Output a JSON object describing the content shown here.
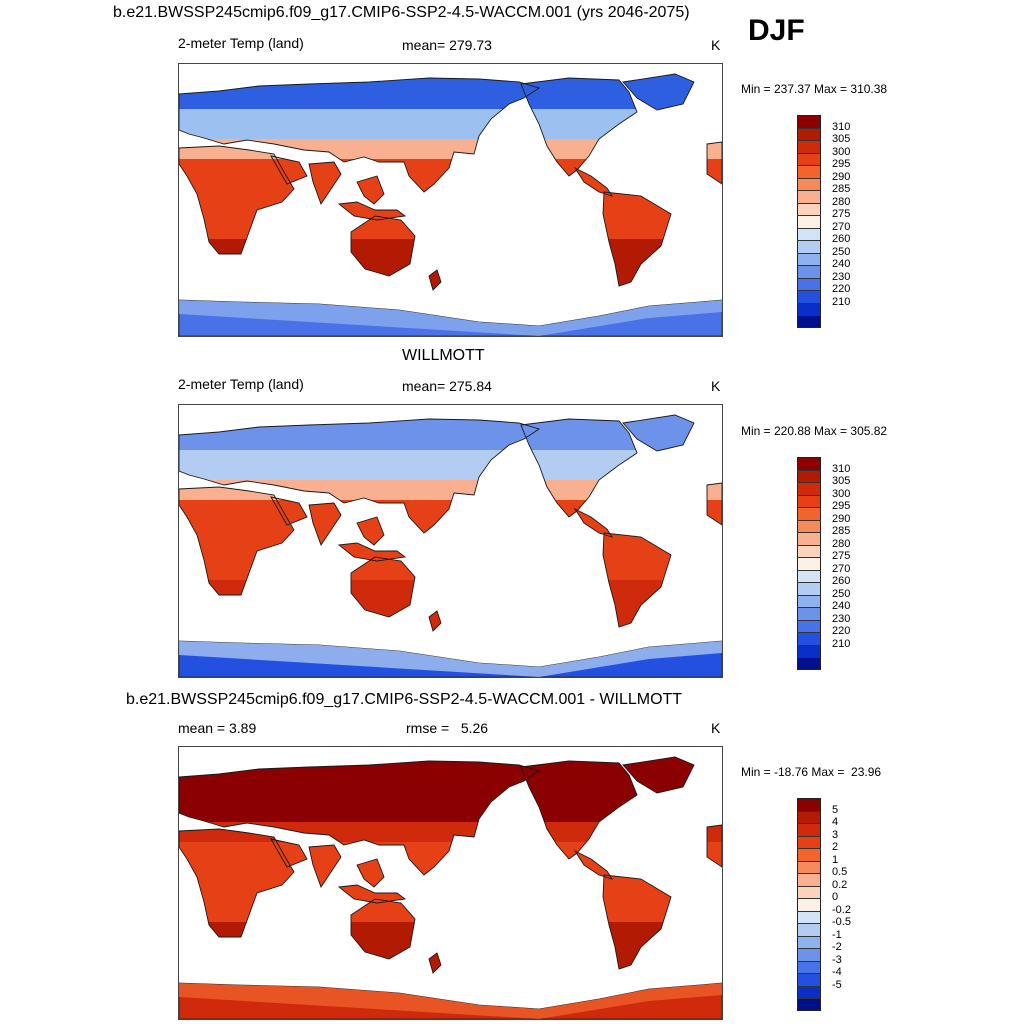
{
  "header": {
    "season": "DJF"
  },
  "panels": [
    {
      "id": "model",
      "title": "b.e21.BWSSP245cmip6.f09_g17.CMIP6-SSP2-4.5-WACCM.001 (yrs 2046-2075)",
      "variable": "2-meter Temp (land)",
      "stat_label": "mean= 279.73",
      "units": "K",
      "minmax": "Min = 237.37 Max = 310.38",
      "colorbar": {
        "labels": [
          "310",
          "305",
          "300",
          "295",
          "290",
          "285",
          "280",
          "275",
          "270",
          "260",
          "250",
          "240",
          "230",
          "220",
          "210"
        ],
        "colors": [
          "#8b0000",
          "#b31a04",
          "#cf2a0c",
          "#e64017",
          "#f2632e",
          "#f68a5a",
          "#f8b090",
          "#fbd3bc",
          "#fdf0e4",
          "#d4e4f7",
          "#b2ccf2",
          "#8fb1ee",
          "#6c92ea",
          "#4a72e8",
          "#2350e0",
          "#0a2fc8",
          "#000f8c"
        ]
      }
    },
    {
      "id": "obs",
      "title": "WILLMOTT",
      "variable": "2-meter Temp (land)",
      "stat_label": "mean= 275.84",
      "units": "K",
      "minmax": "Min = 220.88 Max = 305.82",
      "colorbar": {
        "labels": [
          "310",
          "305",
          "300",
          "295",
          "290",
          "285",
          "280",
          "275",
          "270",
          "260",
          "250",
          "240",
          "230",
          "220",
          "210"
        ],
        "colors": [
          "#8b0000",
          "#b31a04",
          "#cf2a0c",
          "#e64017",
          "#f2632e",
          "#f68a5a",
          "#f8b090",
          "#fbd3bc",
          "#fdf0e4",
          "#d4e4f7",
          "#b2ccf2",
          "#8fb1ee",
          "#6c92ea",
          "#4a72e8",
          "#2350e0",
          "#0a2fc8",
          "#000f8c"
        ]
      }
    },
    {
      "id": "diff",
      "title": "b.e21.BWSSP245cmip6.f09_g17.CMIP6-SSP2-4.5-WACCM.001 - WILLMOTT",
      "stat_label": "mean =   3.89",
      "rmse_label": "rmse =   5.26",
      "units": "K",
      "minmax": "Min = -18.76 Max =  23.96",
      "colorbar": {
        "labels": [
          "5",
          "4",
          "3",
          "2",
          "1",
          "0.5",
          "0.2",
          "0",
          "-0.2",
          "-0.5",
          "-1",
          "-2",
          "-3",
          "-4",
          "-5"
        ],
        "colors": [
          "#8b0000",
          "#b31a04",
          "#cf2a0c",
          "#e64017",
          "#f2632e",
          "#f68a5a",
          "#f8b090",
          "#fbd3bc",
          "#fdf0e4",
          "#d4e4f7",
          "#b2ccf2",
          "#8fb1ee",
          "#6c92ea",
          "#4a72e8",
          "#2350e0",
          "#0a2fc8",
          "#000f8c"
        ]
      }
    }
  ],
  "palette": {
    "model": {
      "polar": "#2e5fe0",
      "mid_north": "#9cc0f0",
      "temperate": "#f8b090",
      "tropics": "#e64017",
      "hot": "#b31a04",
      "antarctic": "#4a72e8",
      "antarctic_edge": "#8fb1ee"
    },
    "obs": {
      "polar": "#6c92ea",
      "mid_north": "#b2ccf2",
      "temperate": "#f8b090",
      "tropics": "#e64017",
      "hot": "#cf2a0c",
      "antarctic": "#2350e0",
      "antarctic_edge": "#b2ccf2"
    },
    "diff": {
      "polar": "#8b0000",
      "mid_north": "#8b0000",
      "temperate": "#cf2a0c",
      "tropics": "#e64017",
      "hot": "#b31a04",
      "antarctic": "#cf2a0c",
      "antarctic_edge": "#f2632e"
    }
  }
}
